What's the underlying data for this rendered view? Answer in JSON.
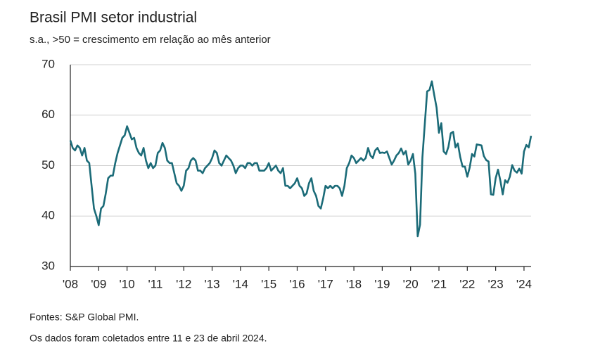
{
  "chart_data": {
    "type": "line",
    "title": "Brasil PMI setor industrial",
    "subtitle": "s.a., >50 = crescimento em relação ao mês anterior",
    "notes": [
      "Fontes: S&P Global PMI.",
      "Os dados foram coletados entre 11 e 23 de abril 2024."
    ],
    "categories": [
      "'08",
      null,
      null,
      null,
      null,
      null,
      null,
      null,
      null,
      null,
      null,
      null,
      "'09",
      null,
      null,
      null,
      null,
      null,
      null,
      null,
      null,
      null,
      null,
      null,
      "'10",
      null,
      null,
      null,
      null,
      null,
      null,
      null,
      null,
      null,
      null,
      null,
      "'11",
      null,
      null,
      null,
      null,
      null,
      null,
      null,
      null,
      null,
      null,
      null,
      "'12",
      null,
      null,
      null,
      null,
      null,
      null,
      null,
      null,
      null,
      null,
      null,
      "'13",
      null,
      null,
      null,
      null,
      null,
      null,
      null,
      null,
      null,
      null,
      null,
      "'14",
      null,
      null,
      null,
      null,
      null,
      null,
      null,
      null,
      null,
      null,
      null,
      "'15",
      null,
      null,
      null,
      null,
      null,
      null,
      null,
      null,
      null,
      null,
      null,
      "'16",
      null,
      null,
      null,
      null,
      null,
      null,
      null,
      null,
      null,
      null,
      null,
      "'17",
      null,
      null,
      null,
      null,
      null,
      null,
      null,
      null,
      null,
      null,
      null,
      "'18",
      null,
      null,
      null,
      null,
      null,
      null,
      null,
      null,
      null,
      null,
      null,
      "'19",
      null,
      null,
      null,
      null,
      null,
      null,
      null,
      null,
      null,
      null,
      null,
      "'20",
      null,
      null,
      null,
      null,
      null,
      null,
      null,
      null,
      null,
      null,
      null,
      "'21",
      null,
      null,
      null,
      null,
      null,
      null,
      null,
      null,
      null,
      null,
      null,
      "'22",
      null,
      null,
      null,
      null,
      null,
      null,
      null,
      null,
      null,
      null,
      null,
      "'23",
      null,
      null,
      null,
      null,
      null,
      null,
      null,
      null,
      null,
      null,
      null,
      "'24",
      null,
      null,
      null
    ],
    "values": [
      55,
      53.5,
      53,
      54,
      53.5,
      52,
      53.5,
      51,
      50.5,
      46,
      41.5,
      40,
      38.2,
      41.5,
      42,
      44.5,
      47.5,
      48,
      48,
      50.5,
      52.5,
      54,
      55.5,
      56,
      57.8,
      56.5,
      55.2,
      55.5,
      53.5,
      52.5,
      52,
      53.5,
      51,
      49.5,
      50.5,
      49.5,
      50,
      52.5,
      53,
      54.5,
      53.5,
      51,
      50.5,
      50.5,
      48.5,
      46.5,
      46,
      45,
      46,
      49,
      49.5,
      51,
      51.5,
      51,
      49,
      49,
      48.5,
      49.5,
      50,
      50.5,
      51.5,
      53,
      52.5,
      50.5,
      50,
      51,
      52,
      51.5,
      51,
      50,
      48.5,
      49.5,
      50,
      50,
      49.5,
      50.5,
      50.5,
      50,
      50.5,
      50.5,
      49,
      49,
      49,
      49.5,
      50.5,
      49,
      49.5,
      50,
      49,
      48.5,
      49.5,
      46,
      46,
      45.5,
      46,
      46.5,
      47.5,
      46,
      45.5,
      44,
      44.5,
      46.5,
      47.5,
      45,
      44,
      42,
      41.5,
      43.5,
      46,
      45.5,
      46,
      45.5,
      46,
      46,
      45.5,
      44,
      46,
      49.5,
      50.5,
      52,
      51.5,
      50.5,
      51,
      51.5,
      51,
      51.5,
      53.5,
      52,
      51.5,
      53,
      53.5,
      52.5,
      52.6,
      52.5,
      52.8,
      51.5,
      50.2,
      51,
      52,
      52.5,
      53.4,
      52.2,
      52.9,
      50.2,
      51,
      52.3,
      48.4,
      36,
      38.3,
      51.6,
      58.2,
      64.7,
      65,
      66.7,
      64,
      61.5,
      56.5,
      58.4,
      52.8,
      52.3,
      53.7,
      56.4,
      56.7,
      53.6,
      54.4,
      51.7,
      49.8,
      49.8,
      47.8,
      49.6,
      52.3,
      51.8,
      54.2,
      54.1,
      54,
      51.9,
      51.1,
      50.8,
      44.3,
      44.2,
      47.5,
      49.2,
      47,
      44.3,
      47.1,
      46.6,
      47.8,
      50.1,
      49,
      48.6,
      49.4,
      48.4,
      52.8,
      54.1,
      53.6,
      55.9
    ],
    "color": "#1b6b78",
    "ylim": [
      30,
      70
    ],
    "yticks": [
      30,
      40,
      50,
      60,
      70
    ],
    "grid": true
  }
}
